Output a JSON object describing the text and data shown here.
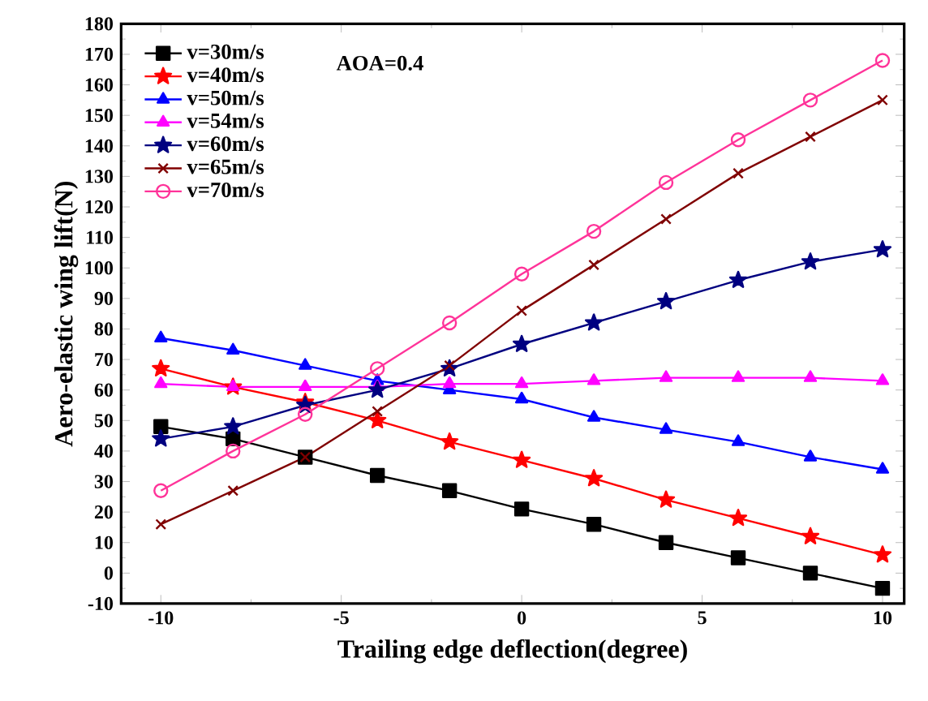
{
  "chart_data": {
    "type": "line",
    "xlabel": "Trailing edge deflection(degree)",
    "ylabel": "Aero-elastic wing lift(N)",
    "annotations": [
      "AOA=0.4"
    ],
    "x": [
      -10,
      -8,
      -6,
      -4,
      -2,
      0,
      2,
      4,
      6,
      8,
      10
    ],
    "xlim": [
      -11.1,
      10.6
    ],
    "xticks": [
      -10,
      -5,
      0,
      5,
      10
    ],
    "ylim": [
      -10,
      180
    ],
    "yticks": [
      -10,
      0,
      10,
      20,
      30,
      40,
      50,
      60,
      70,
      80,
      90,
      100,
      110,
      120,
      130,
      140,
      150,
      160,
      170,
      180
    ],
    "legend": "top left",
    "grid": false,
    "line_style": "solid",
    "series": [
      {
        "name": "v=30m/s",
        "color": "#000000",
        "marker": "square",
        "values": [
          48,
          44,
          38,
          32,
          27,
          21,
          16,
          10,
          5,
          0,
          -5
        ]
      },
      {
        "name": "v=40m/s",
        "color": "#ff0000",
        "marker": "star",
        "values": [
          67,
          61,
          56,
          50,
          43,
          37,
          31,
          24,
          18,
          12,
          6
        ]
      },
      {
        "name": "v=50m/s",
        "color": "#0000ff",
        "marker": "triangle",
        "values": [
          77,
          73,
          68,
          63,
          60,
          57,
          51,
          47,
          43,
          38,
          34
        ]
      },
      {
        "name": "v=54m/s",
        "color": "#ff00ff",
        "marker": "triangle",
        "values": [
          62,
          61,
          61,
          61,
          62,
          62,
          63,
          64,
          64,
          64,
          63
        ]
      },
      {
        "name": "v=60m/s",
        "color": "#000080",
        "marker": "star",
        "values": [
          44,
          48,
          55,
          60,
          67,
          75,
          82,
          89,
          96,
          102,
          106
        ]
      },
      {
        "name": "v=65m/s",
        "color": "#800000",
        "marker": "cross",
        "values": [
          16,
          27,
          38,
          53,
          68,
          86,
          101,
          116,
          131,
          143,
          155
        ]
      },
      {
        "name": "v=70m/s",
        "color": "#ff3399",
        "marker": "circle",
        "values": [
          27,
          40,
          52,
          67,
          82,
          98,
          112,
          128,
          142,
          155,
          168
        ]
      }
    ]
  }
}
